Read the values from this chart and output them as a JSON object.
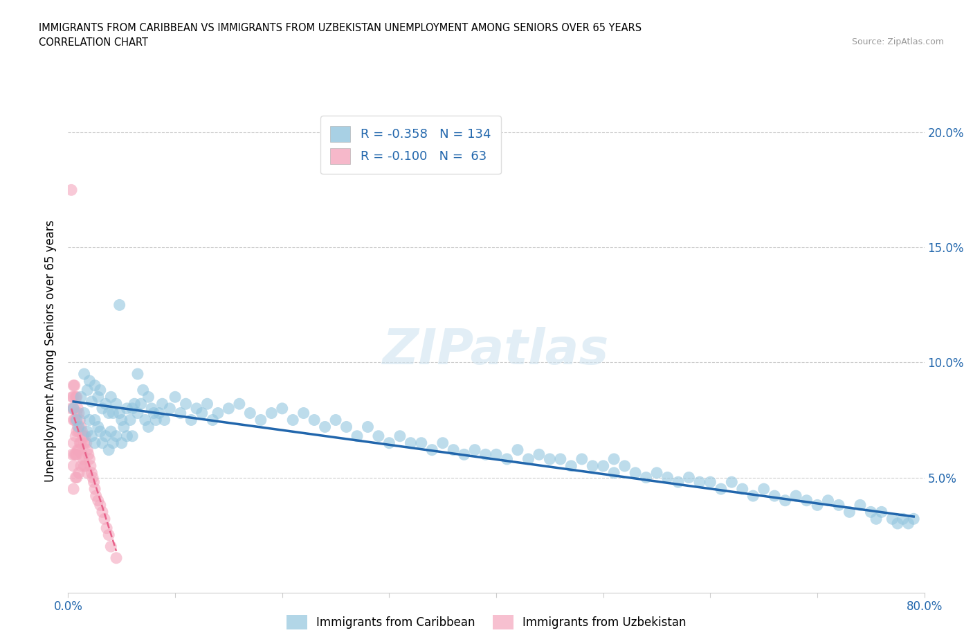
{
  "title_line1": "IMMIGRANTS FROM CARIBBEAN VS IMMIGRANTS FROM UZBEKISTAN UNEMPLOYMENT AMONG SENIORS OVER 65 YEARS",
  "title_line2": "CORRELATION CHART",
  "source_text": "Source: ZipAtlas.com",
  "xlabel_caribbean": "Immigrants from Caribbean",
  "xlabel_uzbekistan": "Immigrants from Uzbekistan",
  "ylabel": "Unemployment Among Seniors over 65 years",
  "xlim": [
    0.0,
    0.8
  ],
  "ylim": [
    0.0,
    0.21
  ],
  "xtick_positions": [
    0.0,
    0.1,
    0.2,
    0.3,
    0.4,
    0.5,
    0.6,
    0.7,
    0.8
  ],
  "xticklabels": [
    "0.0%",
    "",
    "",
    "",
    "",
    "",
    "",
    "",
    "80.0%"
  ],
  "ytick_positions": [
    0.0,
    0.05,
    0.1,
    0.15,
    0.2
  ],
  "yticklabels_right": [
    "",
    "5.0%",
    "10.0%",
    "15.0%",
    "20.0%"
  ],
  "legend_r1": "-0.358",
  "legend_n1": "134",
  "legend_r2": "-0.100",
  "legend_n2": " 63",
  "caribbean_color": "#92c5de",
  "uzbekistan_color": "#f4a6bd",
  "trend_caribbean_color": "#2166ac",
  "trend_uzbekistan_color": "#e8628a",
  "watermark": "ZIPatlas",
  "caribbean_x": [
    0.005,
    0.008,
    0.01,
    0.012,
    0.015,
    0.015,
    0.018,
    0.018,
    0.02,
    0.02,
    0.022,
    0.022,
    0.025,
    0.025,
    0.025,
    0.028,
    0.028,
    0.03,
    0.03,
    0.032,
    0.032,
    0.035,
    0.035,
    0.038,
    0.038,
    0.04,
    0.04,
    0.042,
    0.042,
    0.045,
    0.045,
    0.048,
    0.048,
    0.05,
    0.05,
    0.052,
    0.055,
    0.055,
    0.058,
    0.06,
    0.06,
    0.062,
    0.065,
    0.065,
    0.068,
    0.07,
    0.072,
    0.075,
    0.075,
    0.078,
    0.08,
    0.082,
    0.085,
    0.088,
    0.09,
    0.095,
    0.1,
    0.105,
    0.11,
    0.115,
    0.12,
    0.125,
    0.13,
    0.135,
    0.14,
    0.15,
    0.16,
    0.17,
    0.18,
    0.19,
    0.2,
    0.21,
    0.22,
    0.23,
    0.24,
    0.25,
    0.26,
    0.27,
    0.28,
    0.29,
    0.3,
    0.31,
    0.32,
    0.33,
    0.34,
    0.35,
    0.36,
    0.37,
    0.38,
    0.39,
    0.4,
    0.41,
    0.42,
    0.43,
    0.44,
    0.45,
    0.46,
    0.47,
    0.48,
    0.49,
    0.5,
    0.51,
    0.51,
    0.52,
    0.53,
    0.54,
    0.55,
    0.56,
    0.57,
    0.58,
    0.59,
    0.6,
    0.61,
    0.62,
    0.63,
    0.64,
    0.65,
    0.66,
    0.67,
    0.68,
    0.69,
    0.7,
    0.71,
    0.72,
    0.73,
    0.74,
    0.75,
    0.755,
    0.76,
    0.77,
    0.775,
    0.78,
    0.785,
    0.79
  ],
  "caribbean_y": [
    0.08,
    0.075,
    0.072,
    0.085,
    0.095,
    0.078,
    0.088,
    0.07,
    0.092,
    0.075,
    0.083,
    0.068,
    0.09,
    0.075,
    0.065,
    0.085,
    0.072,
    0.088,
    0.07,
    0.08,
    0.065,
    0.082,
    0.068,
    0.078,
    0.062,
    0.085,
    0.07,
    0.078,
    0.065,
    0.082,
    0.068,
    0.125,
    0.078,
    0.075,
    0.065,
    0.072,
    0.08,
    0.068,
    0.075,
    0.08,
    0.068,
    0.082,
    0.095,
    0.078,
    0.082,
    0.088,
    0.075,
    0.085,
    0.072,
    0.08,
    0.078,
    0.075,
    0.078,
    0.082,
    0.075,
    0.08,
    0.085,
    0.078,
    0.082,
    0.075,
    0.08,
    0.078,
    0.082,
    0.075,
    0.078,
    0.08,
    0.082,
    0.078,
    0.075,
    0.078,
    0.08,
    0.075,
    0.078,
    0.075,
    0.072,
    0.075,
    0.072,
    0.068,
    0.072,
    0.068,
    0.065,
    0.068,
    0.065,
    0.065,
    0.062,
    0.065,
    0.062,
    0.06,
    0.062,
    0.06,
    0.06,
    0.058,
    0.062,
    0.058,
    0.06,
    0.058,
    0.058,
    0.055,
    0.058,
    0.055,
    0.055,
    0.052,
    0.058,
    0.055,
    0.052,
    0.05,
    0.052,
    0.05,
    0.048,
    0.05,
    0.048,
    0.048,
    0.045,
    0.048,
    0.045,
    0.042,
    0.045,
    0.042,
    0.04,
    0.042,
    0.04,
    0.038,
    0.04,
    0.038,
    0.035,
    0.038,
    0.035,
    0.032,
    0.035,
    0.032,
    0.03,
    0.032,
    0.03,
    0.032
  ],
  "uzbekistan_x": [
    0.003,
    0.003,
    0.004,
    0.004,
    0.005,
    0.005,
    0.005,
    0.005,
    0.005,
    0.005,
    0.005,
    0.006,
    0.006,
    0.006,
    0.007,
    0.007,
    0.007,
    0.007,
    0.007,
    0.008,
    0.008,
    0.008,
    0.008,
    0.008,
    0.009,
    0.009,
    0.009,
    0.01,
    0.01,
    0.01,
    0.01,
    0.011,
    0.011,
    0.012,
    0.012,
    0.012,
    0.013,
    0.013,
    0.014,
    0.014,
    0.015,
    0.015,
    0.016,
    0.016,
    0.017,
    0.018,
    0.018,
    0.019,
    0.02,
    0.021,
    0.022,
    0.023,
    0.024,
    0.025,
    0.026,
    0.028,
    0.03,
    0.032,
    0.034,
    0.036,
    0.038,
    0.04,
    0.045
  ],
  "uzbekistan_y": [
    0.175,
    0.08,
    0.085,
    0.06,
    0.09,
    0.085,
    0.08,
    0.075,
    0.065,
    0.055,
    0.045,
    0.09,
    0.075,
    0.06,
    0.085,
    0.075,
    0.068,
    0.06,
    0.05,
    0.085,
    0.078,
    0.07,
    0.06,
    0.05,
    0.08,
    0.072,
    0.062,
    0.078,
    0.07,
    0.062,
    0.052,
    0.075,
    0.065,
    0.072,
    0.065,
    0.055,
    0.07,
    0.06,
    0.068,
    0.058,
    0.065,
    0.055,
    0.068,
    0.055,
    0.065,
    0.062,
    0.052,
    0.06,
    0.058,
    0.055,
    0.052,
    0.05,
    0.048,
    0.045,
    0.042,
    0.04,
    0.038,
    0.035,
    0.032,
    0.028,
    0.025,
    0.02,
    0.015
  ],
  "trend_caribbean_start_x": 0.005,
  "trend_caribbean_end_x": 0.79,
  "trend_caribbean_start_y": 0.083,
  "trend_caribbean_end_y": 0.033,
  "trend_uzbekistan_start_x": 0.003,
  "trend_uzbekistan_end_x": 0.045,
  "trend_uzbekistan_start_y": 0.08,
  "trend_uzbekistan_end_y": 0.018
}
